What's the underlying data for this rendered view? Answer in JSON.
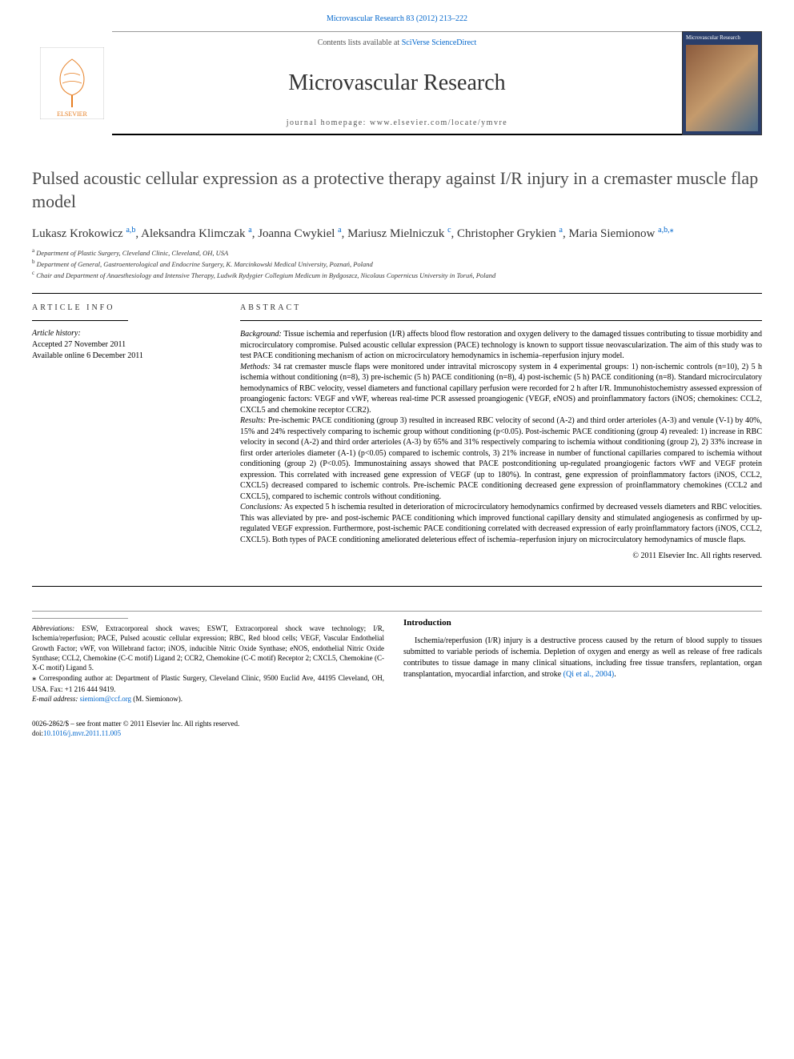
{
  "top_link": {
    "journal": "Microvascular Research",
    "ref": "83 (2012) 213–222"
  },
  "banner": {
    "contents_prefix": "Contents lists available at ",
    "contents_link": "SciVerse ScienceDirect",
    "journal_title": "Microvascular Research",
    "homepage_label": "journal homepage: ",
    "homepage_url": "www.elsevier.com/locate/ymvre",
    "cover_label": "Microvascular\nResearch"
  },
  "article": {
    "title": "Pulsed acoustic cellular expression as a protective therapy against I/R injury in a cremaster muscle flap model",
    "authors_html": [
      {
        "name": "Lukasz Krokowicz",
        "sup": "a,b"
      },
      {
        "name": "Aleksandra Klimczak",
        "sup": "a"
      },
      {
        "name": "Joanna Cwykiel",
        "sup": "a"
      },
      {
        "name": "Mariusz Mielniczuk",
        "sup": "c"
      },
      {
        "name": "Christopher Grykien",
        "sup": "a"
      },
      {
        "name": "Maria Siemionow",
        "sup": "a,b,⁎"
      }
    ],
    "affiliations": [
      {
        "mark": "a",
        "text": "Department of Plastic Surgery, Cleveland Clinic, Cleveland, OH, USA"
      },
      {
        "mark": "b",
        "text": "Department of General, Gastroenterological and Endocrine Surgery, K. Marcinkowski Medical University, Poznań, Poland"
      },
      {
        "mark": "c",
        "text": "Chair and Department of Anaesthesiology and Intensive Therapy, Ludwik Rydygier Collegium Medicum in Bydgoszcz, Nicolaus Copernicus University in Toruń, Poland"
      }
    ]
  },
  "info": {
    "label": "ARTICLE INFO",
    "history_label": "Article history:",
    "accepted": "Accepted 27 November 2011",
    "available": "Available online 6 December 2011"
  },
  "abstract": {
    "label": "ABSTRACT",
    "background_label": "Background:",
    "background": "Tissue ischemia and reperfusion (I/R) affects blood flow restoration and oxygen delivery to the damaged tissues contributing to tissue morbidity and microcirculatory compromise. Pulsed acoustic cellular expression (PACE) technology is known to support tissue neovascularization. The aim of this study was to test PACE conditioning mechanism of action on microcirculatory hemodynamics in ischemia–reperfusion injury model.",
    "methods_label": "Methods:",
    "methods": "34 rat cremaster muscle flaps were monitored under intravital microscopy system in 4 experimental groups: 1) non-ischemic controls (n=10), 2) 5 h ischemia without conditioning (n=8), 3) pre-ischemic (5 h) PACE conditioning (n=8), 4) post-ischemic (5 h) PACE conditioning (n=8). Standard microcirculatory hemodynamics of RBC velocity, vessel diameters and functional capillary perfusion were recorded for 2 h after I/R. Immunohistochemistry assessed expression of proangiogenic factors: VEGF and vWF, whereas real-time PCR assessed proangiogenic (VEGF, eNOS) and proinflammatory factors (iNOS; chemokines: CCL2, CXCL5 and chemokine receptor CCR2).",
    "results_label": "Results:",
    "results": "Pre-ischemic PACE conditioning (group 3) resulted in increased RBC velocity of second (A-2) and third order arterioles (A-3) and venule (V-1) by 40%, 15% and 24% respectively comparing to ischemic group without conditioning (p<0.05). Post-ischemic PACE conditioning (group 4) revealed: 1) increase in RBC velocity in second (A-2) and third order arterioles (A-3) by 65% and 31% respectively comparing to ischemia without conditioning (group 2), 2) 33% increase in first order arterioles diameter (A-1) (p<0.05) compared to ischemic controls, 3) 21% increase in number of functional capillaries compared to ischemia without conditioning (group 2) (P<0.05). Immunostaining assays showed that PACE postconditioning up-regulated proangiogenic factors vWF and VEGF protein expression. This correlated with increased gene expression of VEGF (up to 180%). In contrast, gene expression of proinflammatory factors (iNOS, CCL2, CXCL5) decreased compared to ischemic controls. Pre-ischemic PACE conditioning decreased gene expression of proinflammatory chemokines (CCL2 and CXCL5), compared to ischemic controls without conditioning.",
    "conclusions_label": "Conclusions:",
    "conclusions": "As expected 5 h ischemia resulted in deterioration of microcirculatory hemodynamics confirmed by decreased vessels diameters and RBC velocities. This was alleviated by pre- and post-ischemic PACE conditioning which improved functional capillary density and stimulated angiogenesis as confirmed by up-regulated VEGF expression. Furthermore, post-ischemic PACE conditioning correlated with decreased expression of early proinflammatory factors (iNOS, CCL2, CXCL5). Both types of PACE conditioning ameliorated deleterious effect of ischemia–reperfusion injury on microcirculatory hemodynamics of muscle flaps.",
    "copyright": "© 2011 Elsevier Inc. All rights reserved."
  },
  "footer": {
    "abbrev_label": "Abbreviations:",
    "abbrev": "ESW, Extracorporeal shock waves; ESWT, Extracorporeal shock wave technology; I/R, Ischemia/reperfusion; PACE, Pulsed acoustic cellular expression; RBC, Red blood cells; VEGF, Vascular Endothelial Growth Factor; vWF, von Willebrand factor; iNOS, inducible Nitric Oxide Synthase; eNOS, endothelial Nitric Oxide Synthase; CCL2, Chemokine (C-C motif) Ligand 2; CCR2, Chemokine (C-C motif) Receptor 2; CXCL5, Chemokine (C-X-C motif) Ligand 5.",
    "corresponding_marker": "⁎",
    "corresponding": "Corresponding author at: Department of Plastic Surgery, Cleveland Clinic, 9500 Euclid Ave, 44195 Cleveland, OH, USA. Fax: +1 216 444 9419.",
    "email_label": "E-mail address:",
    "email": "siemiom@ccf.org",
    "email_suffix": "(M. Siemionow).",
    "intro_heading": "Introduction",
    "intro_text": "Ischemia/reperfusion (I/R) injury is a destructive process caused by the return of blood supply to tissues submitted to variable periods of ischemia. Depletion of oxygen and energy as well as release of free radicals contributes to tissue damage in many clinical situations, including free tissue transfers, replantation, organ transplantation, myocardial infarction, and stroke ",
    "intro_cite": "(Qi et al., 2004)",
    "intro_period": ".",
    "front_matter": "0026-2862/$ – see front matter © 2011 Elsevier Inc. All rights reserved.",
    "doi_label": "doi:",
    "doi": "10.1016/j.mvr.2011.11.005"
  },
  "colors": {
    "link": "#0066cc",
    "text": "#000000",
    "muted": "#555555",
    "cover_bg": "#2a3e6a"
  }
}
